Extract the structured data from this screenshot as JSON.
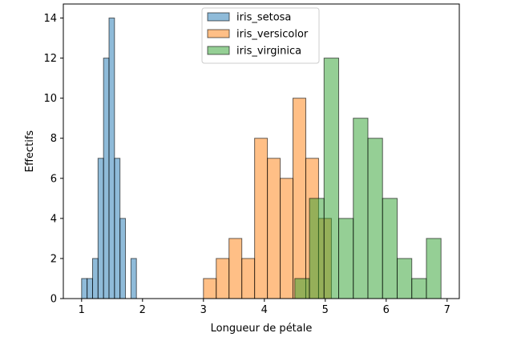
{
  "chart_data": {
    "type": "bar",
    "title": "",
    "xlabel": "Longueur de pétale",
    "ylabel": "Effectifs",
    "xlim": [
      0.7,
      7.2
    ],
    "ylim": [
      0,
      14.7
    ],
    "xticks": [
      1,
      2,
      3,
      4,
      5,
      6,
      7
    ],
    "yticks": [
      0,
      2,
      4,
      6,
      8,
      10,
      12,
      14
    ],
    "legend_position": "top-center",
    "bar_edge_color": "#000000",
    "series": [
      {
        "name": "iris_setosa",
        "color": "#1f77b4",
        "bins": [
          {
            "x0": 1.0,
            "x1": 1.09,
            "count": 1
          },
          {
            "x0": 1.09,
            "x1": 1.18,
            "count": 1
          },
          {
            "x0": 1.18,
            "x1": 1.27,
            "count": 2
          },
          {
            "x0": 1.27,
            "x1": 1.36,
            "count": 7
          },
          {
            "x0": 1.36,
            "x1": 1.45,
            "count": 12
          },
          {
            "x0": 1.45,
            "x1": 1.54,
            "count": 14
          },
          {
            "x0": 1.54,
            "x1": 1.63,
            "count": 7
          },
          {
            "x0": 1.63,
            "x1": 1.72,
            "count": 4
          },
          {
            "x0": 1.72,
            "x1": 1.81,
            "count": 0
          },
          {
            "x0": 1.81,
            "x1": 1.9,
            "count": 2
          }
        ]
      },
      {
        "name": "iris_versicolor",
        "color": "#ff7f0e",
        "bins": [
          {
            "x0": 3.0,
            "x1": 3.21,
            "count": 1
          },
          {
            "x0": 3.21,
            "x1": 3.42,
            "count": 2
          },
          {
            "x0": 3.42,
            "x1": 3.63,
            "count": 3
          },
          {
            "x0": 3.63,
            "x1": 3.84,
            "count": 2
          },
          {
            "x0": 3.84,
            "x1": 4.05,
            "count": 8
          },
          {
            "x0": 4.05,
            "x1": 4.26,
            "count": 7
          },
          {
            "x0": 4.26,
            "x1": 4.47,
            "count": 6
          },
          {
            "x0": 4.47,
            "x1": 4.68,
            "count": 10
          },
          {
            "x0": 4.68,
            "x1": 4.89,
            "count": 7
          },
          {
            "x0": 4.89,
            "x1": 5.1,
            "count": 4
          }
        ]
      },
      {
        "name": "iris_virginica",
        "color": "#2ca02c",
        "bins": [
          {
            "x0": 4.5,
            "x1": 4.74,
            "count": 1
          },
          {
            "x0": 4.74,
            "x1": 4.98,
            "count": 5
          },
          {
            "x0": 4.98,
            "x1": 5.22,
            "count": 12
          },
          {
            "x0": 5.22,
            "x1": 5.46,
            "count": 4
          },
          {
            "x0": 5.46,
            "x1": 5.7,
            "count": 9
          },
          {
            "x0": 5.7,
            "x1": 5.94,
            "count": 8
          },
          {
            "x0": 5.94,
            "x1": 6.18,
            "count": 5
          },
          {
            "x0": 6.18,
            "x1": 6.42,
            "count": 2
          },
          {
            "x0": 6.42,
            "x1": 6.66,
            "count": 1
          },
          {
            "x0": 6.66,
            "x1": 6.9,
            "count": 3
          }
        ]
      }
    ]
  }
}
